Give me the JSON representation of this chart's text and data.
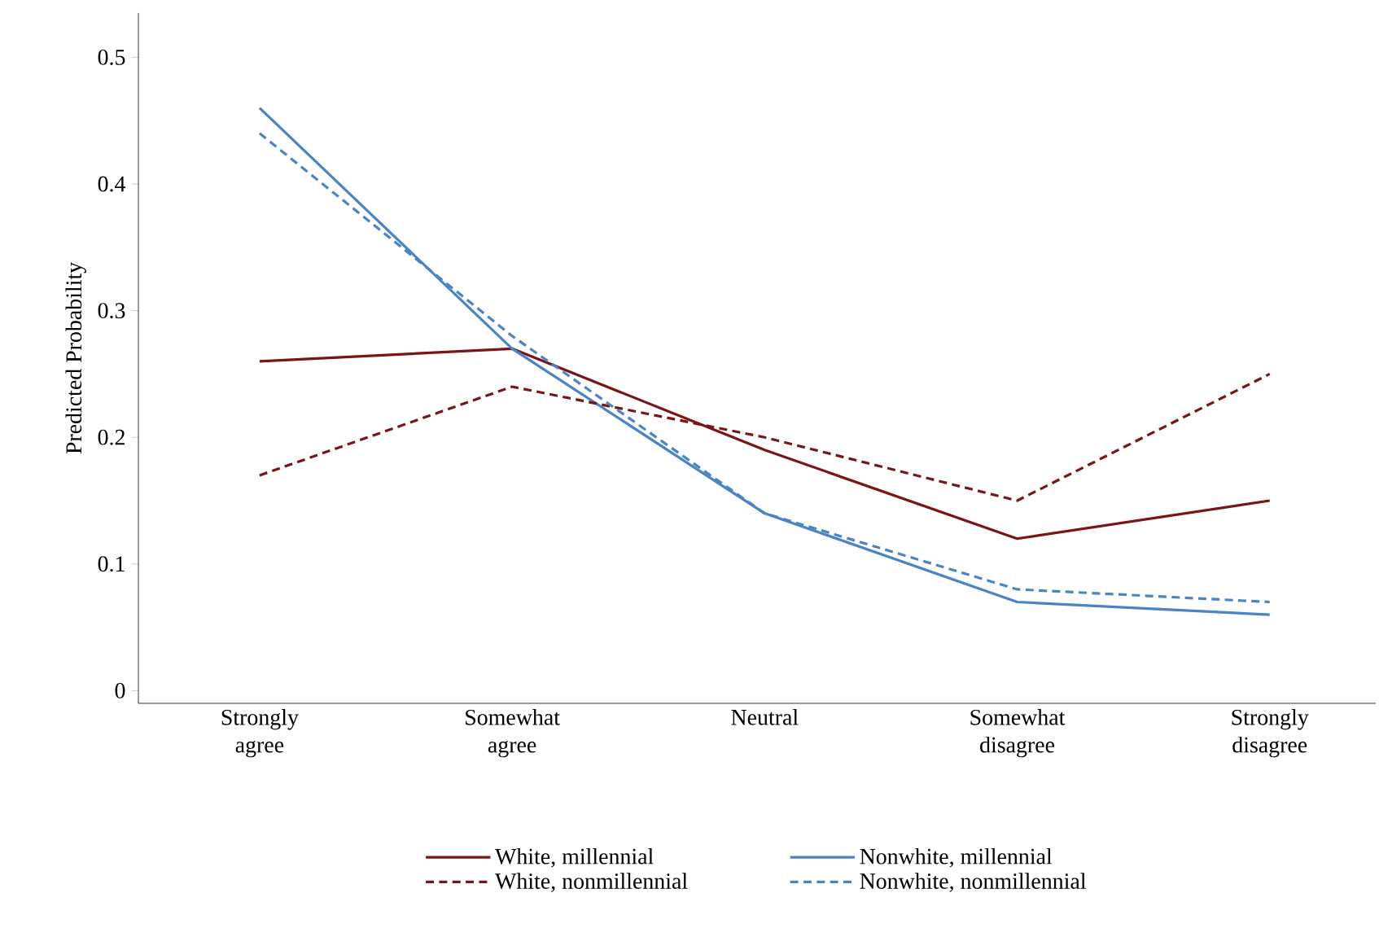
{
  "chart_data": {
    "type": "line",
    "ylabel": "Predicted Probability",
    "categories": [
      "Strongly agree",
      "Somewhat agree",
      "Neutral",
      "Somewhat disagree",
      "Strongly disagree"
    ],
    "ylim": [
      -0.01,
      0.535
    ],
    "yticks": [
      0,
      0.1,
      0.2,
      0.3,
      0.4,
      0.5
    ],
    "grid": false,
    "legend": "bottom",
    "marker": "none",
    "series": [
      {
        "name": "White, millennial",
        "color": "#7b1416",
        "line_style": "solid",
        "values": [
          0.26,
          0.27,
          0.19,
          0.12,
          0.15
        ]
      },
      {
        "name": "Nonwhite, millennial",
        "color": "#4a84c4",
        "line_style": "solid",
        "values": [
          0.46,
          0.27,
          0.14,
          0.07,
          0.06
        ]
      },
      {
        "name": "White, nonmillennial",
        "color": "#7b1416",
        "line_style": "dashed",
        "values": [
          0.17,
          0.24,
          0.2,
          0.15,
          0.25
        ]
      },
      {
        "name": "Nonwhite, nonmillennial",
        "color": "#4a84c4",
        "line_style": "dashed",
        "values": [
          0.44,
          0.28,
          0.14,
          0.08,
          0.07
        ]
      }
    ]
  }
}
